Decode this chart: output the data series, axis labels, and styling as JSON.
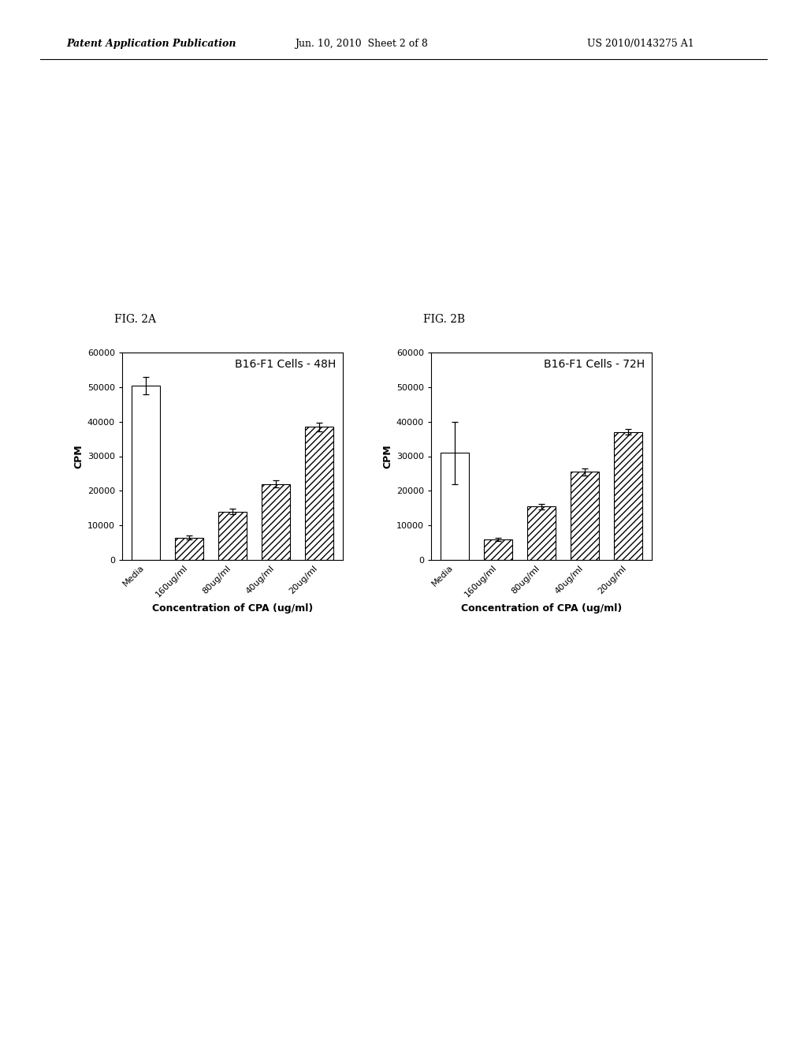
{
  "fig2a": {
    "title": "B16-F1 Cells - 48H",
    "fig_label": "FIG. 2A",
    "categories": [
      "Media",
      "160ug/ml",
      "80ug/ml",
      "40ug/ml",
      "20ug/ml"
    ],
    "values": [
      50500,
      6500,
      14000,
      22000,
      38500
    ],
    "errors": [
      2500,
      500,
      800,
      1000,
      1200
    ],
    "ylabel": "CPM",
    "xlabel": "Concentration of CPA (ug/ml)",
    "ylim": [
      0,
      60000
    ],
    "yticks": [
      0,
      10000,
      20000,
      30000,
      40000,
      50000,
      60000
    ]
  },
  "fig2b": {
    "title": "B16-F1 Cells - 72H",
    "fig_label": "FIG. 2B",
    "categories": [
      "Media",
      "160ug/ml",
      "80ug/ml",
      "40ug/ml",
      "20ug/ml"
    ],
    "values": [
      31000,
      6000,
      15500,
      25500,
      37000
    ],
    "errors": [
      9000,
      500,
      800,
      1000,
      800
    ],
    "ylabel": "CPM",
    "xlabel": "Concentration of CPA (ug/ml)",
    "ylim": [
      0,
      60000
    ],
    "yticks": [
      0,
      10000,
      20000,
      30000,
      40000,
      50000,
      60000
    ]
  },
  "header_text": "Patent Application Publication",
  "header_date": "Jun. 10, 2010  Sheet 2 of 8",
  "header_patent": "US 2010/0143275 A1",
  "background_color": "#ffffff",
  "bar_edge_color": "#000000",
  "hatch_pattern": "////",
  "bar_width": 0.65,
  "fig_label_fontsize": 10,
  "title_fontsize": 10,
  "axis_label_fontsize": 9,
  "tick_fontsize": 8,
  "header_fontsize": 9
}
